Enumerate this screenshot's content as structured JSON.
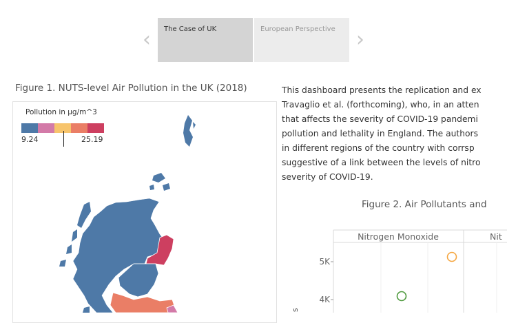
{
  "story": {
    "tabs": [
      {
        "label": "The Case of UK",
        "active": true
      },
      {
        "label": "European Perspective",
        "active": false
      }
    ],
    "prev_icon": "chevron-left-icon",
    "next_icon": "chevron-right-icon"
  },
  "figure1": {
    "title": "Figure 1. NUTS-level Air Pollution in the UK (2018)",
    "legend": {
      "title": "Pollution in µg/m^3",
      "min": "9.24",
      "max": "25.19",
      "colors": [
        "#4e79a7",
        "#d37aa8",
        "#f7c46c",
        "#ea7e66",
        "#cd3f60"
      ]
    }
  },
  "intro": {
    "lines": [
      "This dashboard presents the replication and ex",
      "Travaglio et al. (forthcoming), who, in an atten",
      "that affects the severity of COVID-19 pandemi",
      "pollution and lethality in England. The authors",
      "in different regions of the country with corrsp",
      "suggestive of a link between the levels of nitro",
      "severity of COVID-19."
    ]
  },
  "figure2": {
    "title": "Figure 2. Air Pollutants and",
    "chart_data": {
      "type": "scatter",
      "panels": [
        "Nitrogen Monoxide",
        "Nit"
      ],
      "yticks": [
        "5K",
        "4K"
      ],
      "ylabel": "s",
      "series": [
        {
          "color": "#f5a742",
          "points": [
            {
              "y": 5100
            }
          ]
        },
        {
          "color": "#4f9a3e",
          "points": [
            {
              "y": 4100
            }
          ]
        }
      ]
    }
  }
}
